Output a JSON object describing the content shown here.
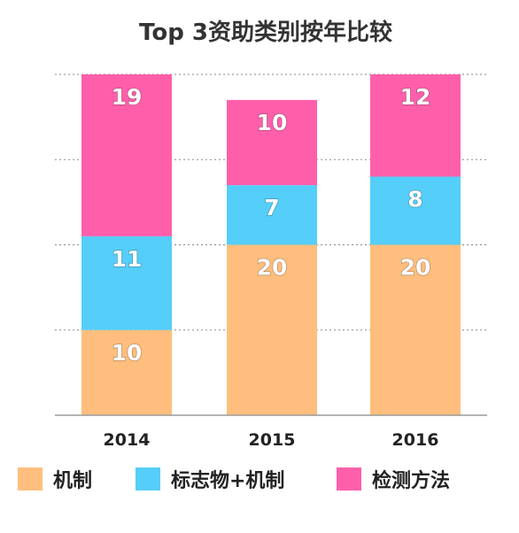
{
  "chart_data": {
    "type": "bar",
    "stacked": true,
    "title": "Top 3资助类别按年比较",
    "xlabel": "",
    "ylabel": "",
    "categories": [
      "2014",
      "2015",
      "2016"
    ],
    "series": [
      {
        "name": "机制",
        "color": "#FFBE7D",
        "values": [
          10,
          20,
          20
        ]
      },
      {
        "name": "标志物+机制",
        "color": "#55CEF9",
        "values": [
          11,
          7,
          8
        ]
      },
      {
        "name": "检测方法",
        "color": "#FF5FAA",
        "values": [
          19,
          10,
          12
        ]
      }
    ],
    "ylim": [
      0,
      40
    ],
    "y_gridlines": [
      10,
      20,
      30,
      40
    ],
    "grid": true,
    "legend_position": "bottom",
    "show_value_labels": true
  }
}
